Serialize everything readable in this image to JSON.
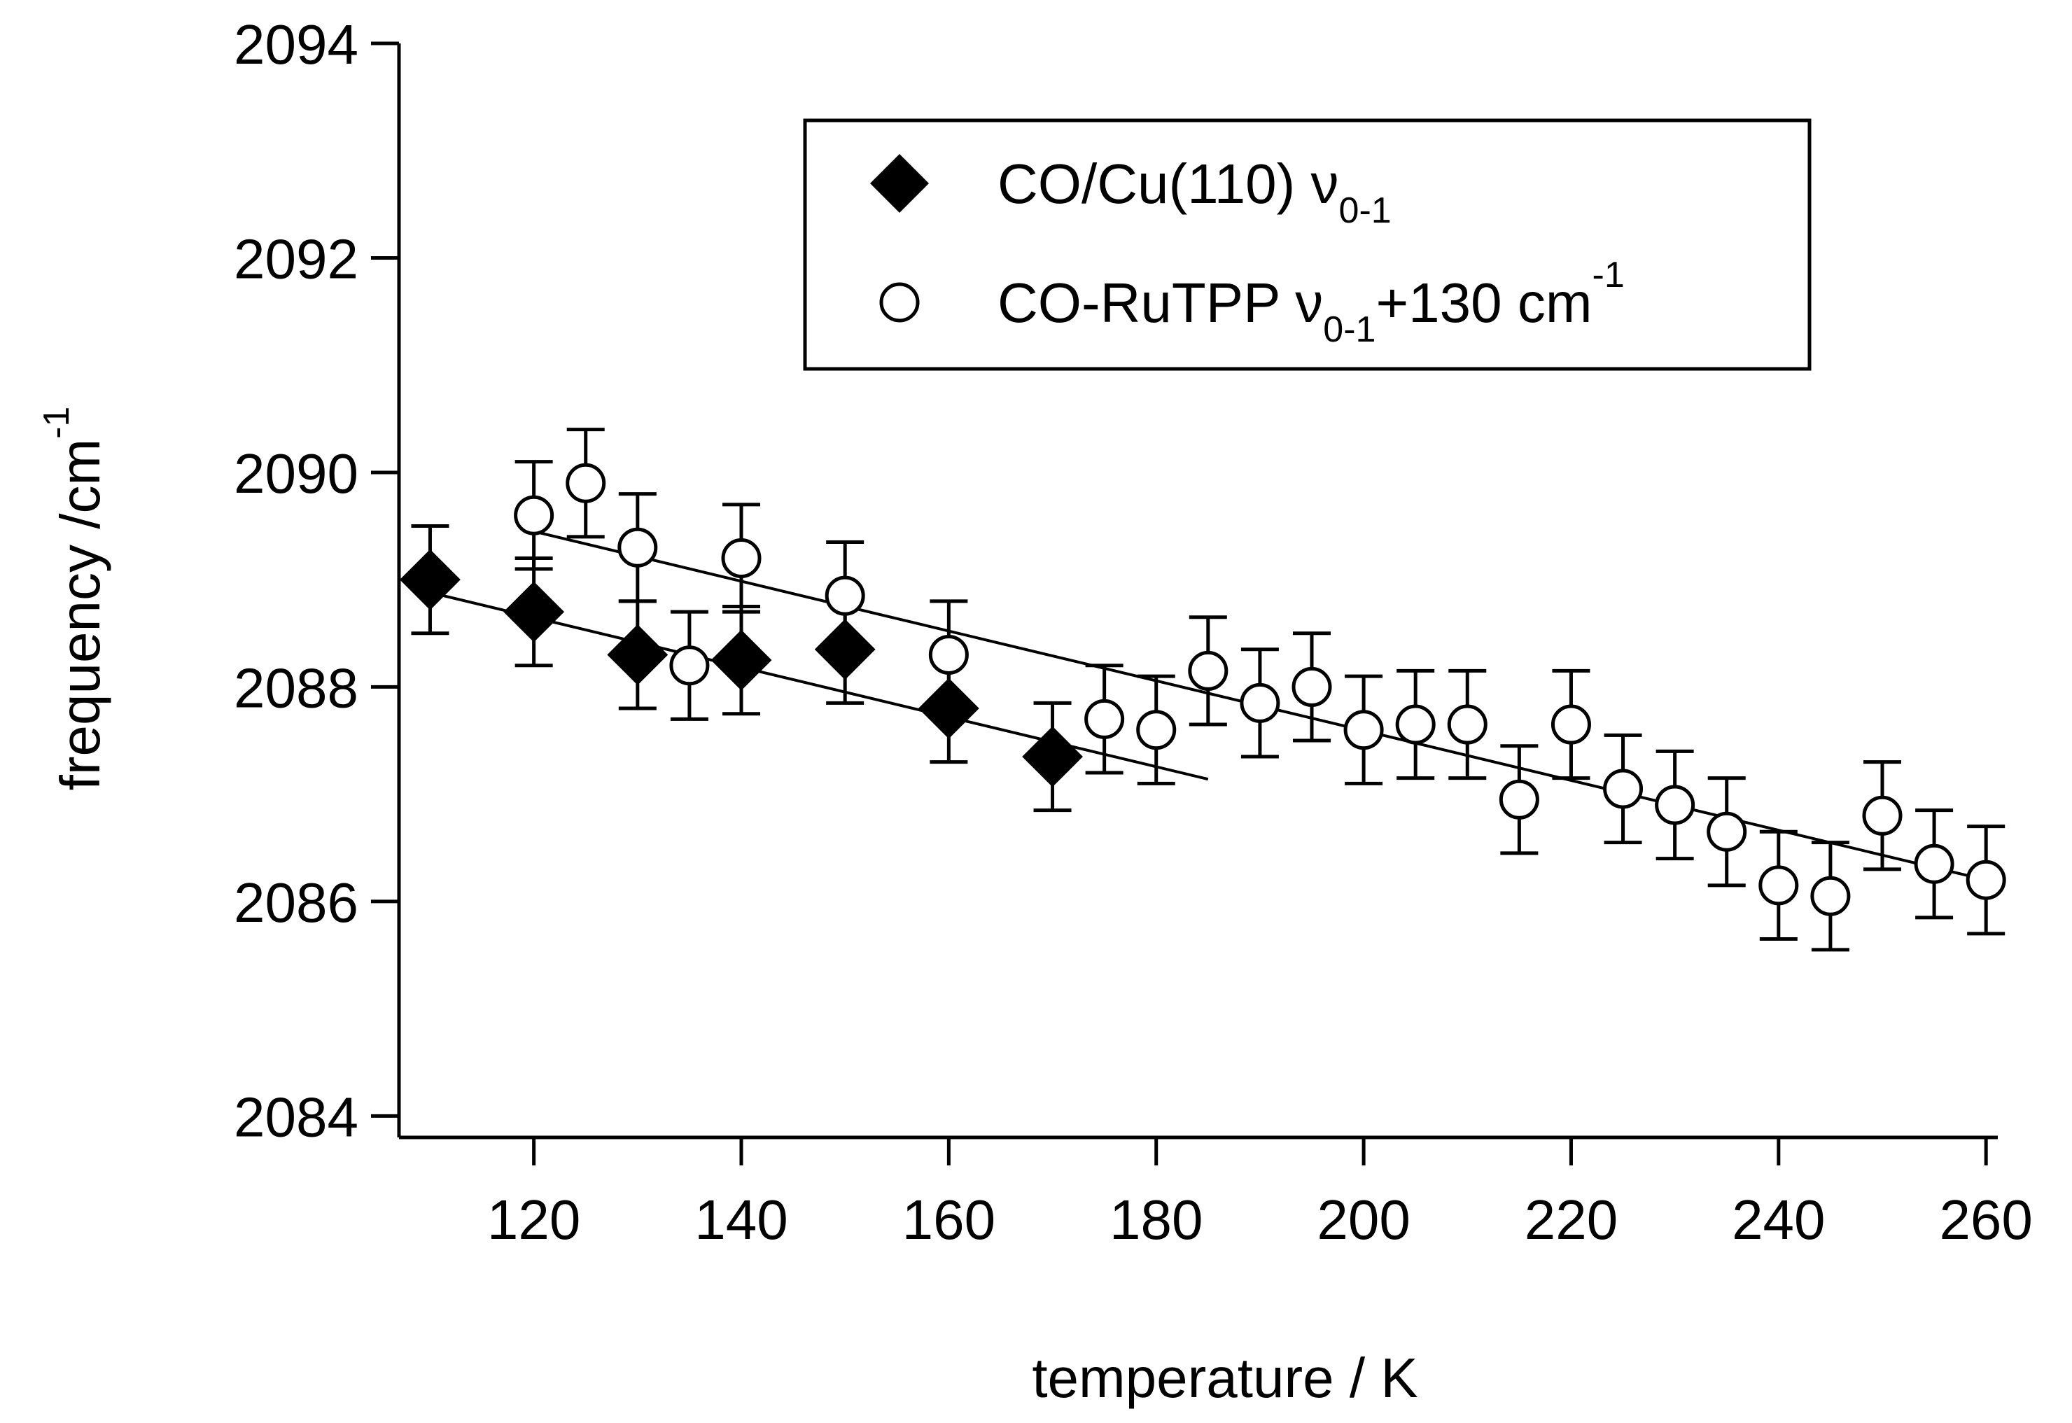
{
  "chart_data": {
    "type": "scatter",
    "title": "",
    "xlabel": "temperature / K",
    "ylabel": {
      "main": "frequency /cm",
      "superscript": "-1"
    },
    "xlim": [
      107,
      261
    ],
    "ylim": [
      2083.8,
      2094
    ],
    "x_ticks": [
      120,
      140,
      160,
      180,
      200,
      220,
      240,
      260
    ],
    "x_tick_labels": [
      "120",
      "140",
      "160",
      "180",
      "200",
      "220",
      "240",
      "260"
    ],
    "y_ticks": [
      2084,
      2086,
      2088,
      2090,
      2092,
      2094
    ],
    "y_tick_labels": [
      "2084",
      "2086",
      "2088",
      "2090",
      "2092",
      "2094"
    ],
    "grid": false,
    "legend_position": "top-right",
    "series": [
      {
        "name": "CO/Cu(110) ν0-1",
        "legend": {
          "main": "CO/Cu(110) ν",
          "sub": "0-1",
          "after": "",
          "sup": ""
        },
        "marker": "filled-diamond",
        "x": [
          110,
          120,
          130,
          140,
          150,
          160,
          170
        ],
        "y": [
          2089.0,
          2088.7,
          2088.3,
          2088.25,
          2088.35,
          2087.8,
          2087.35
        ],
        "error": [
          0.5,
          0.5,
          0.5,
          0.5,
          0.5,
          0.5,
          0.5
        ],
        "fit": {
          "x": [
            110,
            185
          ],
          "y": [
            2088.88,
            2087.14
          ]
        }
      },
      {
        "name": "CO-RuTPP ν0-1+130 cm-1",
        "legend": {
          "main": "CO-RuTPP ν",
          "sub": "0-1",
          "after": "+130 cm",
          "sup": "-1"
        },
        "marker": "open-circle",
        "x": [
          120,
          125,
          130,
          135,
          140,
          150,
          160,
          175,
          180,
          185,
          190,
          195,
          200,
          205,
          210,
          215,
          220,
          225,
          230,
          235,
          240,
          245,
          250,
          255,
          260
        ],
        "y": [
          2089.6,
          2089.9,
          2089.3,
          2088.2,
          2089.2,
          2088.85,
          2088.3,
          2087.7,
          2087.6,
          2088.15,
          2087.85,
          2088.0,
          2087.6,
          2087.65,
          2087.65,
          2086.95,
          2087.65,
          2087.05,
          2086.9,
          2086.65,
          2086.15,
          2086.05,
          2086.8,
          2086.35,
          2086.2
        ],
        "error": [
          0.5,
          0.5,
          0.5,
          0.5,
          0.5,
          0.5,
          0.5,
          0.5,
          0.5,
          0.5,
          0.5,
          0.5,
          0.5,
          0.5,
          0.5,
          0.5,
          0.5,
          0.5,
          0.5,
          0.5,
          0.5,
          0.5,
          0.5,
          0.5,
          0.5
        ],
        "fit": {
          "x": [
            120,
            260
          ],
          "y": [
            2089.45,
            2086.2
          ]
        }
      }
    ]
  }
}
